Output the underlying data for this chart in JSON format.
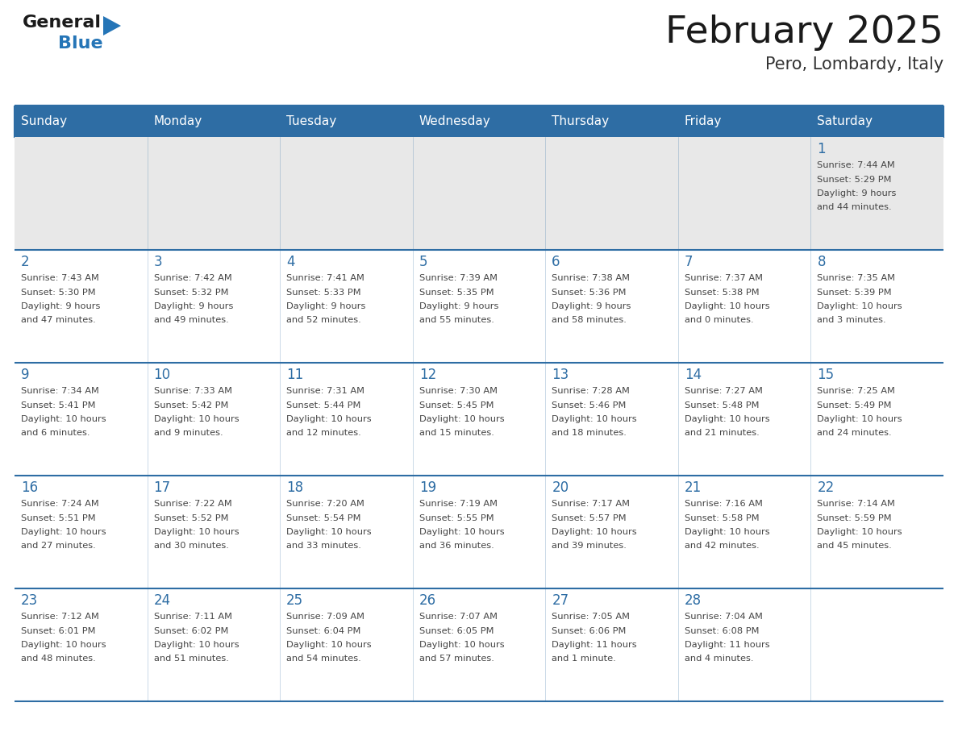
{
  "title": "February 2025",
  "subtitle": "Pero, Lombardy, Italy",
  "days_of_week": [
    "Sunday",
    "Monday",
    "Tuesday",
    "Wednesday",
    "Thursday",
    "Friday",
    "Saturday"
  ],
  "header_bg": "#2e6da4",
  "header_text": "#ffffff",
  "row1_bg": "#e8e8e8",
  "row_bg": "#ffffff",
  "separator_color": "#2e6da4",
  "day_num_color": "#2e6da4",
  "info_color": "#444444",
  "title_color": "#1a1a1a",
  "subtitle_color": "#333333",
  "logo_black": "#1a1a1a",
  "logo_blue": "#2575b7",
  "calendar": [
    [
      null,
      null,
      null,
      null,
      null,
      null,
      {
        "day": "1",
        "sunrise": "7:44 AM",
        "sunset": "5:29 PM",
        "daylight_l1": "Daylight: 9 hours",
        "daylight_l2": "and 44 minutes."
      }
    ],
    [
      {
        "day": "2",
        "sunrise": "7:43 AM",
        "sunset": "5:30 PM",
        "daylight_l1": "Daylight: 9 hours",
        "daylight_l2": "and 47 minutes."
      },
      {
        "day": "3",
        "sunrise": "7:42 AM",
        "sunset": "5:32 PM",
        "daylight_l1": "Daylight: 9 hours",
        "daylight_l2": "and 49 minutes."
      },
      {
        "day": "4",
        "sunrise": "7:41 AM",
        "sunset": "5:33 PM",
        "daylight_l1": "Daylight: 9 hours",
        "daylight_l2": "and 52 minutes."
      },
      {
        "day": "5",
        "sunrise": "7:39 AM",
        "sunset": "5:35 PM",
        "daylight_l1": "Daylight: 9 hours",
        "daylight_l2": "and 55 minutes."
      },
      {
        "day": "6",
        "sunrise": "7:38 AM",
        "sunset": "5:36 PM",
        "daylight_l1": "Daylight: 9 hours",
        "daylight_l2": "and 58 minutes."
      },
      {
        "day": "7",
        "sunrise": "7:37 AM",
        "sunset": "5:38 PM",
        "daylight_l1": "Daylight: 10 hours",
        "daylight_l2": "and 0 minutes."
      },
      {
        "day": "8",
        "sunrise": "7:35 AM",
        "sunset": "5:39 PM",
        "daylight_l1": "Daylight: 10 hours",
        "daylight_l2": "and 3 minutes."
      }
    ],
    [
      {
        "day": "9",
        "sunrise": "7:34 AM",
        "sunset": "5:41 PM",
        "daylight_l1": "Daylight: 10 hours",
        "daylight_l2": "and 6 minutes."
      },
      {
        "day": "10",
        "sunrise": "7:33 AM",
        "sunset": "5:42 PM",
        "daylight_l1": "Daylight: 10 hours",
        "daylight_l2": "and 9 minutes."
      },
      {
        "day": "11",
        "sunrise": "7:31 AM",
        "sunset": "5:44 PM",
        "daylight_l1": "Daylight: 10 hours",
        "daylight_l2": "and 12 minutes."
      },
      {
        "day": "12",
        "sunrise": "7:30 AM",
        "sunset": "5:45 PM",
        "daylight_l1": "Daylight: 10 hours",
        "daylight_l2": "and 15 minutes."
      },
      {
        "day": "13",
        "sunrise": "7:28 AM",
        "sunset": "5:46 PM",
        "daylight_l1": "Daylight: 10 hours",
        "daylight_l2": "and 18 minutes."
      },
      {
        "day": "14",
        "sunrise": "7:27 AM",
        "sunset": "5:48 PM",
        "daylight_l1": "Daylight: 10 hours",
        "daylight_l2": "and 21 minutes."
      },
      {
        "day": "15",
        "sunrise": "7:25 AM",
        "sunset": "5:49 PM",
        "daylight_l1": "Daylight: 10 hours",
        "daylight_l2": "and 24 minutes."
      }
    ],
    [
      {
        "day": "16",
        "sunrise": "7:24 AM",
        "sunset": "5:51 PM",
        "daylight_l1": "Daylight: 10 hours",
        "daylight_l2": "and 27 minutes."
      },
      {
        "day": "17",
        "sunrise": "7:22 AM",
        "sunset": "5:52 PM",
        "daylight_l1": "Daylight: 10 hours",
        "daylight_l2": "and 30 minutes."
      },
      {
        "day": "18",
        "sunrise": "7:20 AM",
        "sunset": "5:54 PM",
        "daylight_l1": "Daylight: 10 hours",
        "daylight_l2": "and 33 minutes."
      },
      {
        "day": "19",
        "sunrise": "7:19 AM",
        "sunset": "5:55 PM",
        "daylight_l1": "Daylight: 10 hours",
        "daylight_l2": "and 36 minutes."
      },
      {
        "day": "20",
        "sunrise": "7:17 AM",
        "sunset": "5:57 PM",
        "daylight_l1": "Daylight: 10 hours",
        "daylight_l2": "and 39 minutes."
      },
      {
        "day": "21",
        "sunrise": "7:16 AM",
        "sunset": "5:58 PM",
        "daylight_l1": "Daylight: 10 hours",
        "daylight_l2": "and 42 minutes."
      },
      {
        "day": "22",
        "sunrise": "7:14 AM",
        "sunset": "5:59 PM",
        "daylight_l1": "Daylight: 10 hours",
        "daylight_l2": "and 45 minutes."
      }
    ],
    [
      {
        "day": "23",
        "sunrise": "7:12 AM",
        "sunset": "6:01 PM",
        "daylight_l1": "Daylight: 10 hours",
        "daylight_l2": "and 48 minutes."
      },
      {
        "day": "24",
        "sunrise": "7:11 AM",
        "sunset": "6:02 PM",
        "daylight_l1": "Daylight: 10 hours",
        "daylight_l2": "and 51 minutes."
      },
      {
        "day": "25",
        "sunrise": "7:09 AM",
        "sunset": "6:04 PM",
        "daylight_l1": "Daylight: 10 hours",
        "daylight_l2": "and 54 minutes."
      },
      {
        "day": "26",
        "sunrise": "7:07 AM",
        "sunset": "6:05 PM",
        "daylight_l1": "Daylight: 10 hours",
        "daylight_l2": "and 57 minutes."
      },
      {
        "day": "27",
        "sunrise": "7:05 AM",
        "sunset": "6:06 PM",
        "daylight_l1": "Daylight: 11 hours",
        "daylight_l2": "and 1 minute."
      },
      {
        "day": "28",
        "sunrise": "7:04 AM",
        "sunset": "6:08 PM",
        "daylight_l1": "Daylight: 11 hours",
        "daylight_l2": "and 4 minutes."
      },
      null
    ]
  ]
}
